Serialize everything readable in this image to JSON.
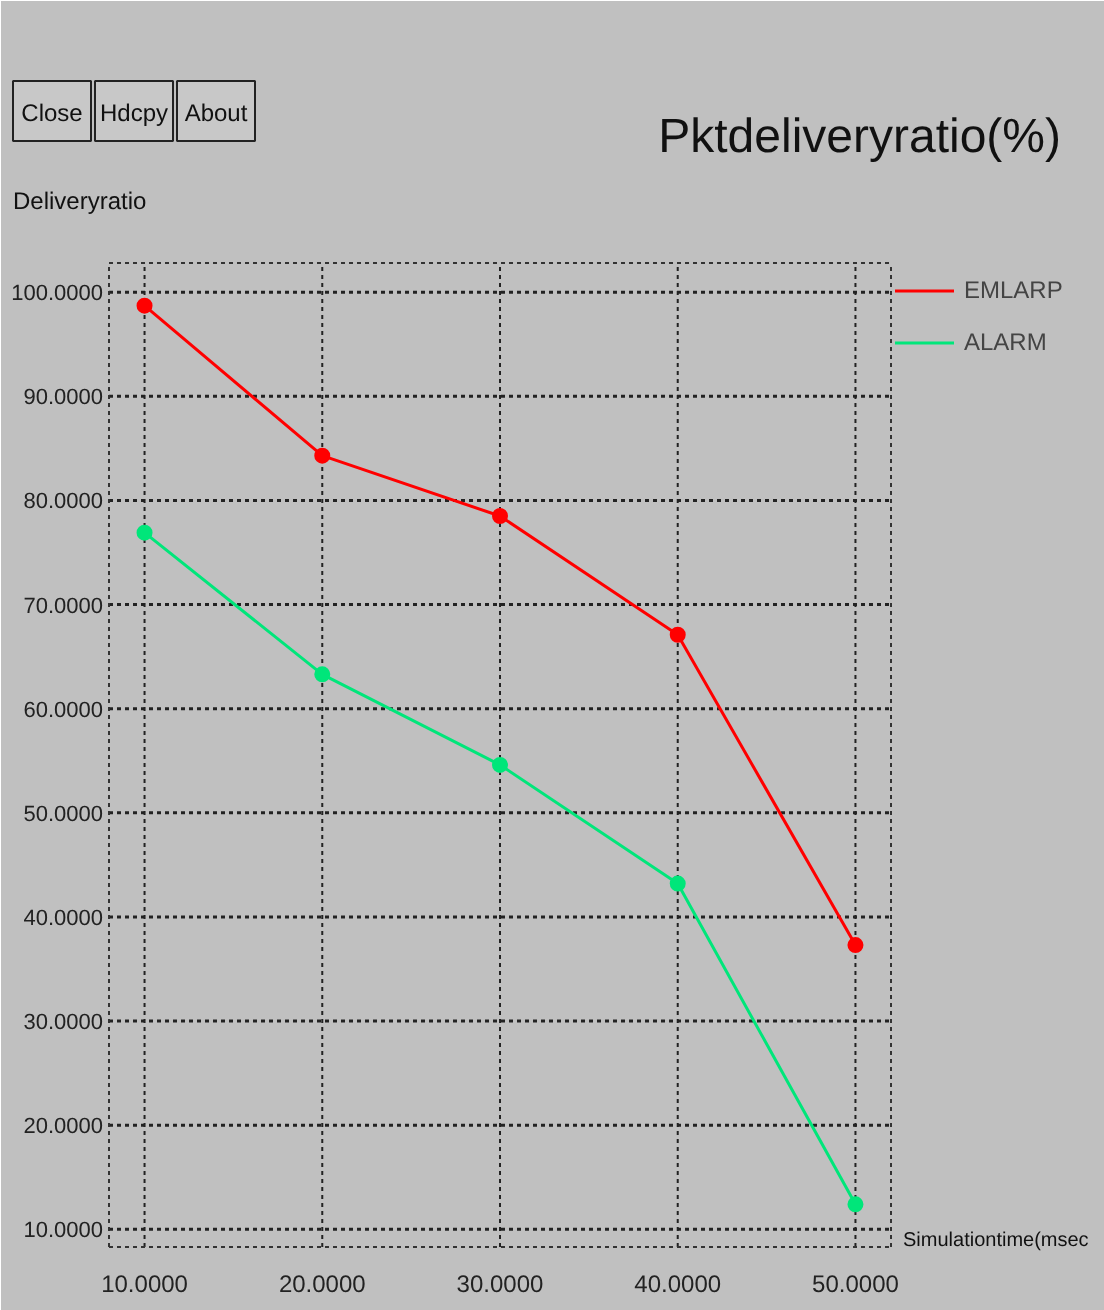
{
  "chart_data": {
    "type": "line",
    "title": "Pktdeliveryratio(%)",
    "xlabel": "Simulationtime(msec",
    "ylabel": "Deliveryratio",
    "annotations": [
      "Close",
      "Hdcpy",
      "About"
    ],
    "x": [
      10,
      20,
      30,
      40,
      50
    ],
    "series": [
      {
        "name": "EMLARP",
        "color": "#ff0000",
        "values": [
          98.7,
          84.3,
          78.5,
          67.1,
          37.3
        ]
      },
      {
        "name": "ALARM",
        "color": "#00e67a",
        "values": [
          76.9,
          63.3,
          54.6,
          43.2,
          12.4
        ]
      }
    ],
    "xlim": [
      8.0,
      52.0
    ],
    "ylim": [
      8.3,
      102.8
    ],
    "xticks": [
      {
        "value": 10,
        "label": "10.0000"
      },
      {
        "value": 20,
        "label": "20.0000"
      },
      {
        "value": 30,
        "label": "30.0000"
      },
      {
        "value": 40,
        "label": "40.0000"
      },
      {
        "value": 50,
        "label": "50.0000"
      }
    ],
    "yticks": [
      {
        "value": 10,
        "label": "10.0000"
      },
      {
        "value": 20,
        "label": "20.0000"
      },
      {
        "value": 30,
        "label": "30.0000"
      },
      {
        "value": 40,
        "label": "40.0000"
      },
      {
        "value": 50,
        "label": "50.0000"
      },
      {
        "value": 60,
        "label": "60.0000"
      },
      {
        "value": 70,
        "label": "70.0000"
      },
      {
        "value": 80,
        "label": "80.0000"
      },
      {
        "value": 90,
        "label": "90.0000"
      },
      {
        "value": 100,
        "label": "100.0000"
      }
    ],
    "grid": true,
    "legend": "top right",
    "marker": "circle",
    "line_style": "solid"
  }
}
